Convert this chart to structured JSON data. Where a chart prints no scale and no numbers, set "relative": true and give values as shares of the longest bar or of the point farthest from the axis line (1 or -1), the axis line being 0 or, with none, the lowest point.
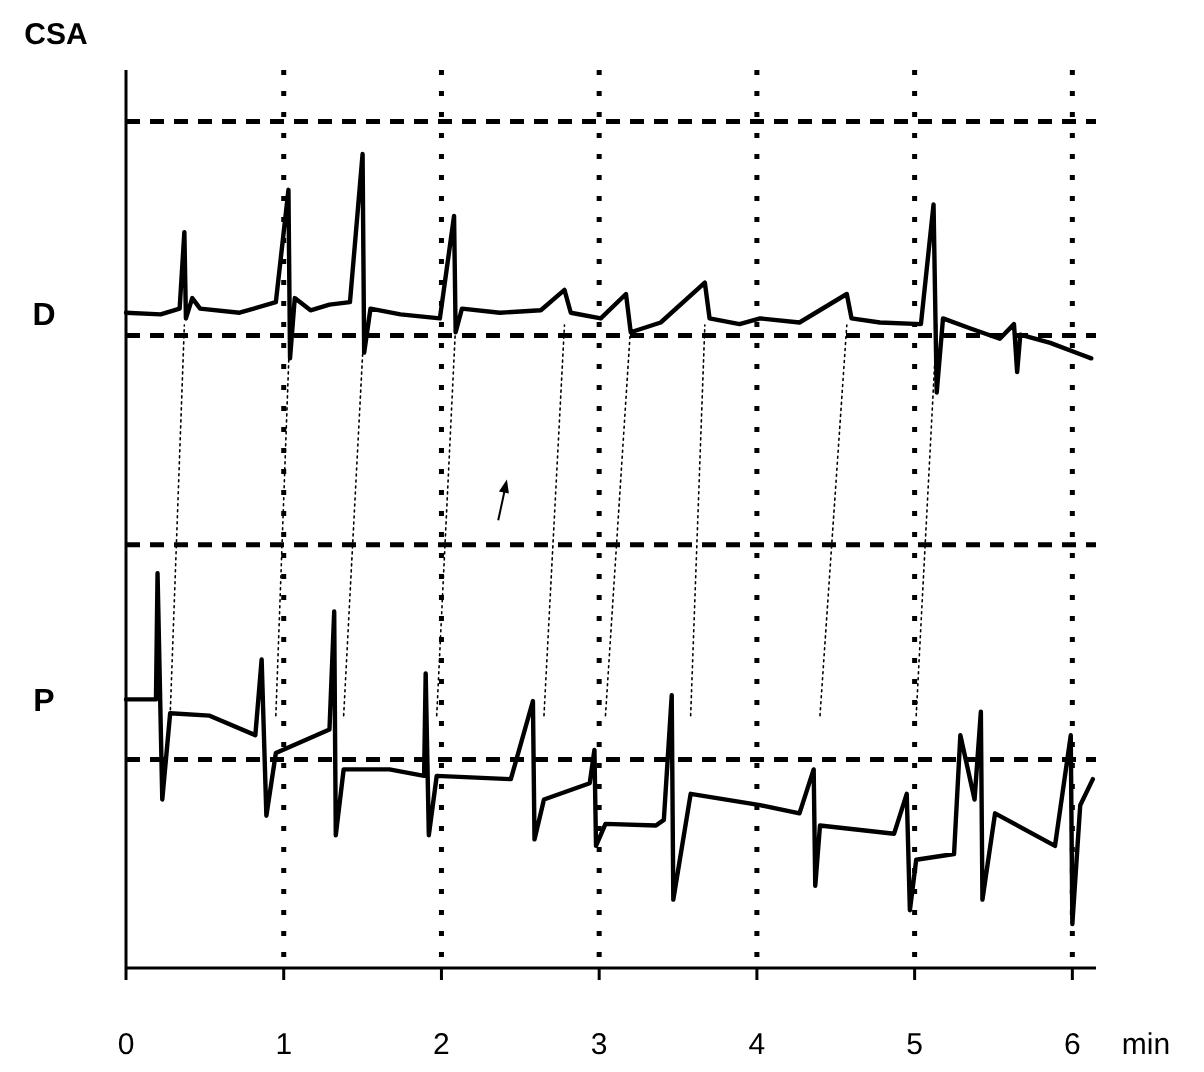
{
  "chart_data": {
    "type": "line",
    "relative": true,
    "ylabel": "CSA",
    "xlabel": "min",
    "xlim": [
      0,
      6.15
    ],
    "xticks": [
      0,
      1,
      2,
      3,
      4,
      5,
      6
    ],
    "grid": "x",
    "line_style": "solid",
    "ref_lines": [
      {
        "axis": "y",
        "value": 1.04
      },
      {
        "axis": "y",
        "value": 0.777
      },
      {
        "axis": "y",
        "value": 0.52
      },
      {
        "axis": "y",
        "value": 0.256
      }
    ],
    "series": [
      {
        "name": "D",
        "color": "#000000",
        "x": [
          0,
          0.22,
          0.34,
          0.37,
          0.38,
          0.42,
          0.47,
          0.72,
          0.95,
          1.03,
          1.04,
          1.07,
          1.17,
          1.29,
          1.42,
          1.5,
          1.51,
          1.55,
          1.74,
          1.99,
          2.08,
          2.09,
          2.13,
          2.37,
          2.63,
          2.78,
          2.82,
          3.01,
          3.17,
          3.2,
          3.39,
          3.67,
          3.7,
          3.89,
          4.02,
          4.27,
          4.57,
          4.6,
          4.78,
          5.04,
          5.12,
          5.14,
          5.18,
          5.35,
          5.54,
          5.63,
          5.65,
          5.67,
          5.86,
          6.05,
          6.12
        ],
        "values": [
          0.805,
          0.803,
          0.81,
          0.904,
          0.798,
          0.823,
          0.81,
          0.805,
          0.818,
          0.956,
          0.749,
          0.823,
          0.808,
          0.815,
          0.818,
          1.0,
          0.756,
          0.81,
          0.803,
          0.798,
          0.924,
          0.781,
          0.81,
          0.805,
          0.808,
          0.833,
          0.805,
          0.798,
          0.828,
          0.781,
          0.793,
          0.842,
          0.798,
          0.791,
          0.798,
          0.793,
          0.828,
          0.798,
          0.793,
          0.791,
          0.938,
          0.707,
          0.798,
          0.786,
          0.773,
          0.791,
          0.732,
          0.778,
          0.768,
          0.754,
          0.749
        ]
      },
      {
        "type": "line",
        "line_style": "dotted",
        "color": "#000000",
        "x": [
          0.28,
          0.37
        ],
        "values": [
          0.31,
          0.79
        ]
      },
      {
        "type": "line",
        "line_style": "dotted",
        "color": "#000000",
        "x": [
          0.95,
          1.04
        ],
        "values": [
          0.31,
          0.79
        ]
      },
      {
        "type": "line",
        "line_style": "dotted",
        "color": "#000000",
        "x": [
          1.38,
          1.51
        ],
        "values": [
          0.31,
          0.79
        ]
      },
      {
        "type": "line",
        "line_style": "dotted",
        "color": "#000000",
        "x": [
          1.97,
          2.09
        ],
        "values": [
          0.31,
          0.79
        ]
      },
      {
        "type": "line",
        "line_style": "dotted",
        "color": "#000000",
        "x": [
          2.65,
          2.78
        ],
        "values": [
          0.31,
          0.79
        ]
      },
      {
        "type": "line",
        "line_style": "dotted",
        "color": "#000000",
        "x": [
          3.04,
          3.2
        ],
        "values": [
          0.31,
          0.79
        ]
      },
      {
        "type": "line",
        "line_style": "dotted",
        "color": "#000000",
        "x": [
          3.58,
          3.67
        ],
        "values": [
          0.31,
          0.79
        ]
      },
      {
        "type": "line",
        "line_style": "dotted",
        "color": "#000000",
        "x": [
          4.4,
          4.57
        ],
        "values": [
          0.31,
          0.79
        ]
      },
      {
        "type": "line",
        "line_style": "dotted",
        "color": "#000000",
        "x": [
          5.01,
          5.14
        ],
        "values": [
          0.31,
          0.79
        ]
      },
      {
        "name": "P",
        "color": "#000000",
        "x": [
          0,
          0.19,
          0.2,
          0.23,
          0.28,
          0.53,
          0.82,
          0.86,
          0.89,
          0.95,
          1.29,
          1.32,
          1.33,
          1.38,
          1.67,
          1.89,
          1.9,
          1.92,
          1.97,
          2.44,
          2.58,
          2.59,
          2.65,
          2.94,
          2.97,
          2.98,
          3.04,
          3.36,
          3.41,
          3.46,
          3.47,
          3.58,
          4.02,
          4.27,
          4.36,
          4.37,
          4.4,
          4.87,
          4.95,
          4.97,
          5.01,
          5.25,
          5.29,
          5.38,
          5.42,
          5.43,
          5.51,
          5.89,
          5.99,
          6.0,
          6.05,
          6.13
        ],
        "values": [
          0.33,
          0.33,
          0.485,
          0.207,
          0.313,
          0.31,
          0.286,
          0.379,
          0.187,
          0.264,
          0.293,
          0.438,
          0.163,
          0.244,
          0.244,
          0.236,
          0.362,
          0.163,
          0.236,
          0.232,
          0.328,
          0.158,
          0.207,
          0.227,
          0.268,
          0.15,
          0.177,
          0.175,
          0.182,
          0.335,
          0.084,
          0.214,
          0.2,
          0.19,
          0.244,
          0.101,
          0.175,
          0.165,
          0.214,
          0.071,
          0.133,
          0.14,
          0.286,
          0.207,
          0.315,
          0.084,
          0.19,
          0.15,
          0.286,
          0.054,
          0.2,
          0.232
        ]
      }
    ]
  }
}
